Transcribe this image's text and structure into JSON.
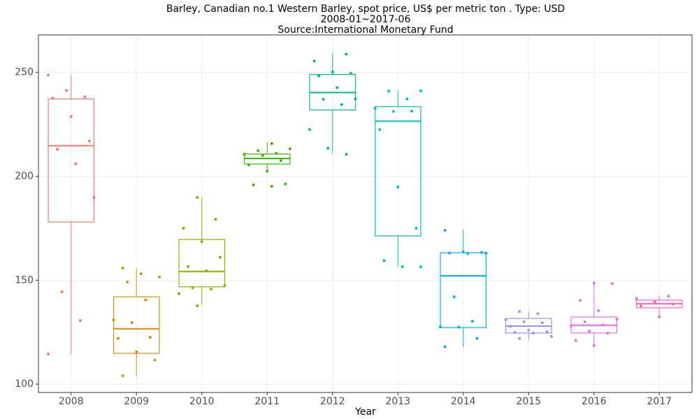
{
  "chart_data": {
    "type": "box",
    "title": "Barley, Canadian no.1 Western Barley, spot price, US$ per metric ton . Type: USD",
    "subtitle": "2008-01~2017-06",
    "source": "Source:International Monetary Fund",
    "x_label": "Year",
    "categories": [
      "2008",
      "2009",
      "2010",
      "2011",
      "2012",
      "2013",
      "2014",
      "2015",
      "2016",
      "2017"
    ],
    "ylim": [
      96,
      268
    ],
    "yticks": [
      100,
      150,
      200,
      250
    ],
    "grid": true,
    "boxes": [
      {
        "color": "#F8766D",
        "low": 114.5,
        "q1": 178,
        "median": 214.7,
        "q3": 237.2,
        "high": 248.7,
        "points": [
          248.7,
          241.3,
          238.2,
          237.6,
          228.8,
          217,
          213,
          206,
          189.8,
          144.4,
          130.6,
          114.5
        ]
      },
      {
        "color": "#D89000",
        "low": 104,
        "q1": 114.8,
        "median": 126.6,
        "q3": 142,
        "high": 155.8,
        "points": [
          155.8,
          153.1,
          151.5,
          149.1,
          140.5,
          130.9,
          129.6,
          122.6,
          122,
          115.6,
          111.6,
          104
        ]
      },
      {
        "color": "#A3A500",
        "low": 138,
        "q1": 146.8,
        "median": 154.2,
        "q3": 169.6,
        "high": 189.8,
        "points": [
          189.8,
          179.3,
          175,
          168.5,
          161,
          156.5,
          154.5,
          147.5,
          146.4,
          145.7,
          143.5,
          137.7
        ]
      },
      {
        "color": "#39B600",
        "low": 202.3,
        "q1": 205.9,
        "median": 208.6,
        "q3": 210.7,
        "high": 216.4,
        "points": [
          215.7,
          213.2,
          212.3,
          211,
          210.6,
          210,
          207.5,
          205.5,
          202.5,
          196.3,
          195.8,
          195.2
        ]
      },
      {
        "color": "#00BF7D",
        "low": 211,
        "q1": 231.9,
        "median": 240.3,
        "q3": 249,
        "high": 259.1,
        "points": [
          258.7,
          255.5,
          250.2,
          249.5,
          248.3,
          242.6,
          237.2,
          237,
          234.5,
          222.5,
          213.5,
          210.6
        ]
      },
      {
        "color": "#00BFC4",
        "low": 156.5,
        "q1": 171.3,
        "median": 226.5,
        "q3": 233.5,
        "high": 241.3,
        "points": [
          241.1,
          241,
          237.2,
          232.7,
          231.2,
          231.4,
          222.5,
          194.8,
          175,
          159.4,
          156.5,
          156.4
        ]
      },
      {
        "color": "#00B0F6",
        "low": 117.8,
        "q1": 127.2,
        "median": 152.1,
        "q3": 163.2,
        "high": 174.3,
        "points": [
          174,
          163.6,
          163.4,
          163.1,
          162.8,
          163,
          142,
          130.2,
          127.5,
          127.4,
          122,
          118
        ]
      },
      {
        "color": "#9590FF",
        "low": 121.2,
        "q1": 124.6,
        "median": 127.9,
        "q3": 131.6,
        "high": 135,
        "points": [
          134.9,
          133.9,
          131,
          130,
          129.5,
          127.8,
          126,
          125.2,
          124.9,
          124.5,
          123,
          122
        ]
      },
      {
        "color": "#E76BF3",
        "low": 118.8,
        "q1": 124.6,
        "median": 128.3,
        "q3": 132.3,
        "high": 148.8,
        "points": [
          148.6,
          148.4,
          140.2,
          135.3,
          131.2,
          130,
          128.5,
          128,
          125.5,
          124.5,
          121,
          118.5
        ]
      },
      {
        "color": "#FF62BC",
        "low": 132.6,
        "q1": 136.7,
        "median": 138.7,
        "q3": 140.4,
        "high": 142.7,
        "points": [
          142.3,
          141.2,
          139.6,
          138.5,
          137.6,
          132.4
        ]
      }
    ]
  }
}
